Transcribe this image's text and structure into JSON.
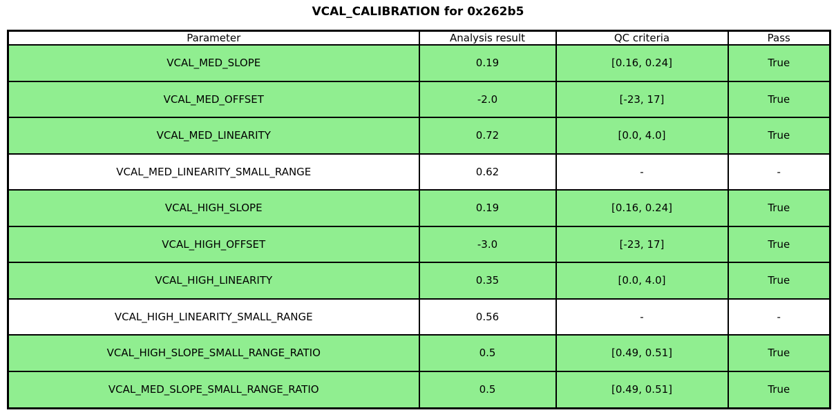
{
  "title": "VCAL_CALIBRATION for 0x262b5",
  "colors": {
    "pass_green": "#90EE90",
    "border": "#000000",
    "background": "#ffffff",
    "text": "#000000"
  },
  "chart_data": {
    "type": "table",
    "title": "VCAL_CALIBRATION for 0x262b5",
    "columns": [
      "Parameter",
      "Analysis result",
      "QC criteria",
      "Pass"
    ],
    "rows": [
      {
        "cells": [
          "VCAL_MED_SLOPE",
          "0.19",
          "[0.16, 0.24]",
          "True"
        ],
        "highlighted": true
      },
      {
        "cells": [
          "VCAL_MED_OFFSET",
          "-2.0",
          "[-23, 17]",
          "True"
        ],
        "highlighted": true
      },
      {
        "cells": [
          "VCAL_MED_LINEARITY",
          "0.72",
          "[0.0, 4.0]",
          "True"
        ],
        "highlighted": true
      },
      {
        "cells": [
          "VCAL_MED_LINEARITY_SMALL_RANGE",
          "0.62",
          "-",
          "-"
        ],
        "highlighted": false
      },
      {
        "cells": [
          "VCAL_HIGH_SLOPE",
          "0.19",
          "[0.16, 0.24]",
          "True"
        ],
        "highlighted": true
      },
      {
        "cells": [
          "VCAL_HIGH_OFFSET",
          "-3.0",
          "[-23, 17]",
          "True"
        ],
        "highlighted": true
      },
      {
        "cells": [
          "VCAL_HIGH_LINEARITY",
          "0.35",
          "[0.0, 4.0]",
          "True"
        ],
        "highlighted": true
      },
      {
        "cells": [
          "VCAL_HIGH_LINEARITY_SMALL_RANGE",
          "0.56",
          "-",
          "-"
        ],
        "highlighted": false
      },
      {
        "cells": [
          "VCAL_HIGH_SLOPE_SMALL_RANGE_RATIO",
          "0.5",
          "[0.49, 0.51]",
          "True"
        ],
        "highlighted": true
      },
      {
        "cells": [
          "VCAL_MED_SLOPE_SMALL_RANGE_RATIO",
          "0.5",
          "[0.49, 0.51]",
          "True"
        ],
        "highlighted": true
      }
    ]
  }
}
